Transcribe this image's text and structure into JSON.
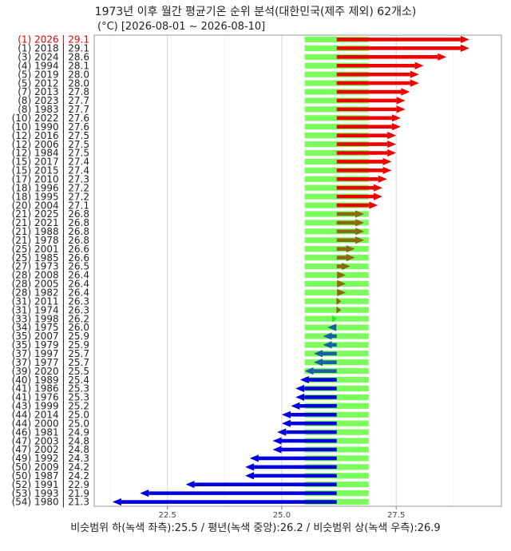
{
  "chart_data": {
    "type": "bar",
    "title": "1973년 이후 월간 평균기온 순위 분석(대한민국(제주 제외) 62개소)",
    "subtitle": "(°C) [2026-08-01 ~ 2026-08-10]",
    "footer": "비슷범위 하(녹색 좌측):25.5 / 평년(녹색 중앙):26.2 / 비슷범위 상(녹색 우측):26.9",
    "xlim": [
      20.9,
      29.8
    ],
    "x_ticks": [
      "22.5",
      "25.0",
      "27.5"
    ],
    "x_tick_values": [
      22.5,
      25.0,
      27.5
    ],
    "normal_range": {
      "low": 25.5,
      "normal": 26.2,
      "high": 26.9
    },
    "grid": true,
    "highlight_color": "#e00000",
    "colors": {
      "above": "#ee0000",
      "near_above": "#8b6914",
      "normal": "#22ee22",
      "near_below": "#1a5fa0",
      "below": "#0000dd",
      "band": "#7cfc5c",
      "band_center": "#5a7a1e"
    },
    "labels": [
      "(1) 2026 | 29.1",
      "(1) 2018 | 29.1",
      "(3) 2024 | 28.6",
      "(4) 1994 | 28.1",
      "(5) 2019 | 28.0",
      "(5) 2012 | 28.0",
      "(7) 2013 | 27.8",
      "(8) 2023 | 27.7",
      "(8) 1983 | 27.7",
      "(10) 2022 | 27.6",
      "(10) 1990 | 27.6",
      "(12) 2016 | 27.5",
      "(12) 2006 | 27.5",
      "(12) 1984 | 27.5",
      "(15) 2017 | 27.4",
      "(15) 2015 | 27.4",
      "(17) 2010 | 27.3",
      "(18) 1996 | 27.2",
      "(18) 1995 | 27.2",
      "(20) 2004 | 27.1",
      "(21) 2025 | 26.8",
      "(21) 2021 | 26.8",
      "(21) 1988 | 26.8",
      "(21) 1978 | 26.8",
      "(25) 2001 | 26.6",
      "(25) 1985 | 26.6",
      "(27) 1973 | 26.5",
      "(28) 2008 | 26.4",
      "(28) 2005 | 26.4",
      "(28) 1982 | 26.4",
      "(31) 2011 | 26.3",
      "(31) 1974 | 26.3",
      "(33) 1998 | 26.2",
      "(34) 1975 | 26.0",
      "(35) 2007 | 25.9",
      "(35) 1979 | 25.9",
      "(37) 1997 | 25.7",
      "(37) 1977 | 25.7",
      "(39) 2020 | 25.5",
      "(40) 1989 | 25.4",
      "(41) 1986 | 25.3",
      "(41) 1976 | 25.3",
      "(43) 1999 | 25.2",
      "(44) 2014 | 25.0",
      "(44) 2000 | 25.0",
      "(46) 1981 | 24.9",
      "(47) 2003 | 24.8",
      "(47) 2002 | 24.8",
      "(49) 1992 | 24.3",
      "(50) 2009 | 24.2",
      "(50) 1987 | 24.2",
      "(52) 1991 | 22.9",
      "(53) 1993 | 21.9",
      "(54) 1980 | 21.3"
    ],
    "values": [
      29.1,
      29.1,
      28.6,
      28.1,
      28.0,
      28.0,
      27.8,
      27.7,
      27.7,
      27.6,
      27.6,
      27.5,
      27.5,
      27.5,
      27.4,
      27.4,
      27.3,
      27.2,
      27.2,
      27.1,
      26.8,
      26.8,
      26.8,
      26.8,
      26.6,
      26.6,
      26.5,
      26.4,
      26.4,
      26.4,
      26.3,
      26.3,
      26.2,
      26.0,
      25.9,
      25.9,
      25.7,
      25.7,
      25.5,
      25.4,
      25.3,
      25.3,
      25.2,
      25.0,
      25.0,
      24.9,
      24.8,
      24.8,
      24.3,
      24.2,
      24.2,
      22.9,
      21.9,
      21.3
    ]
  }
}
